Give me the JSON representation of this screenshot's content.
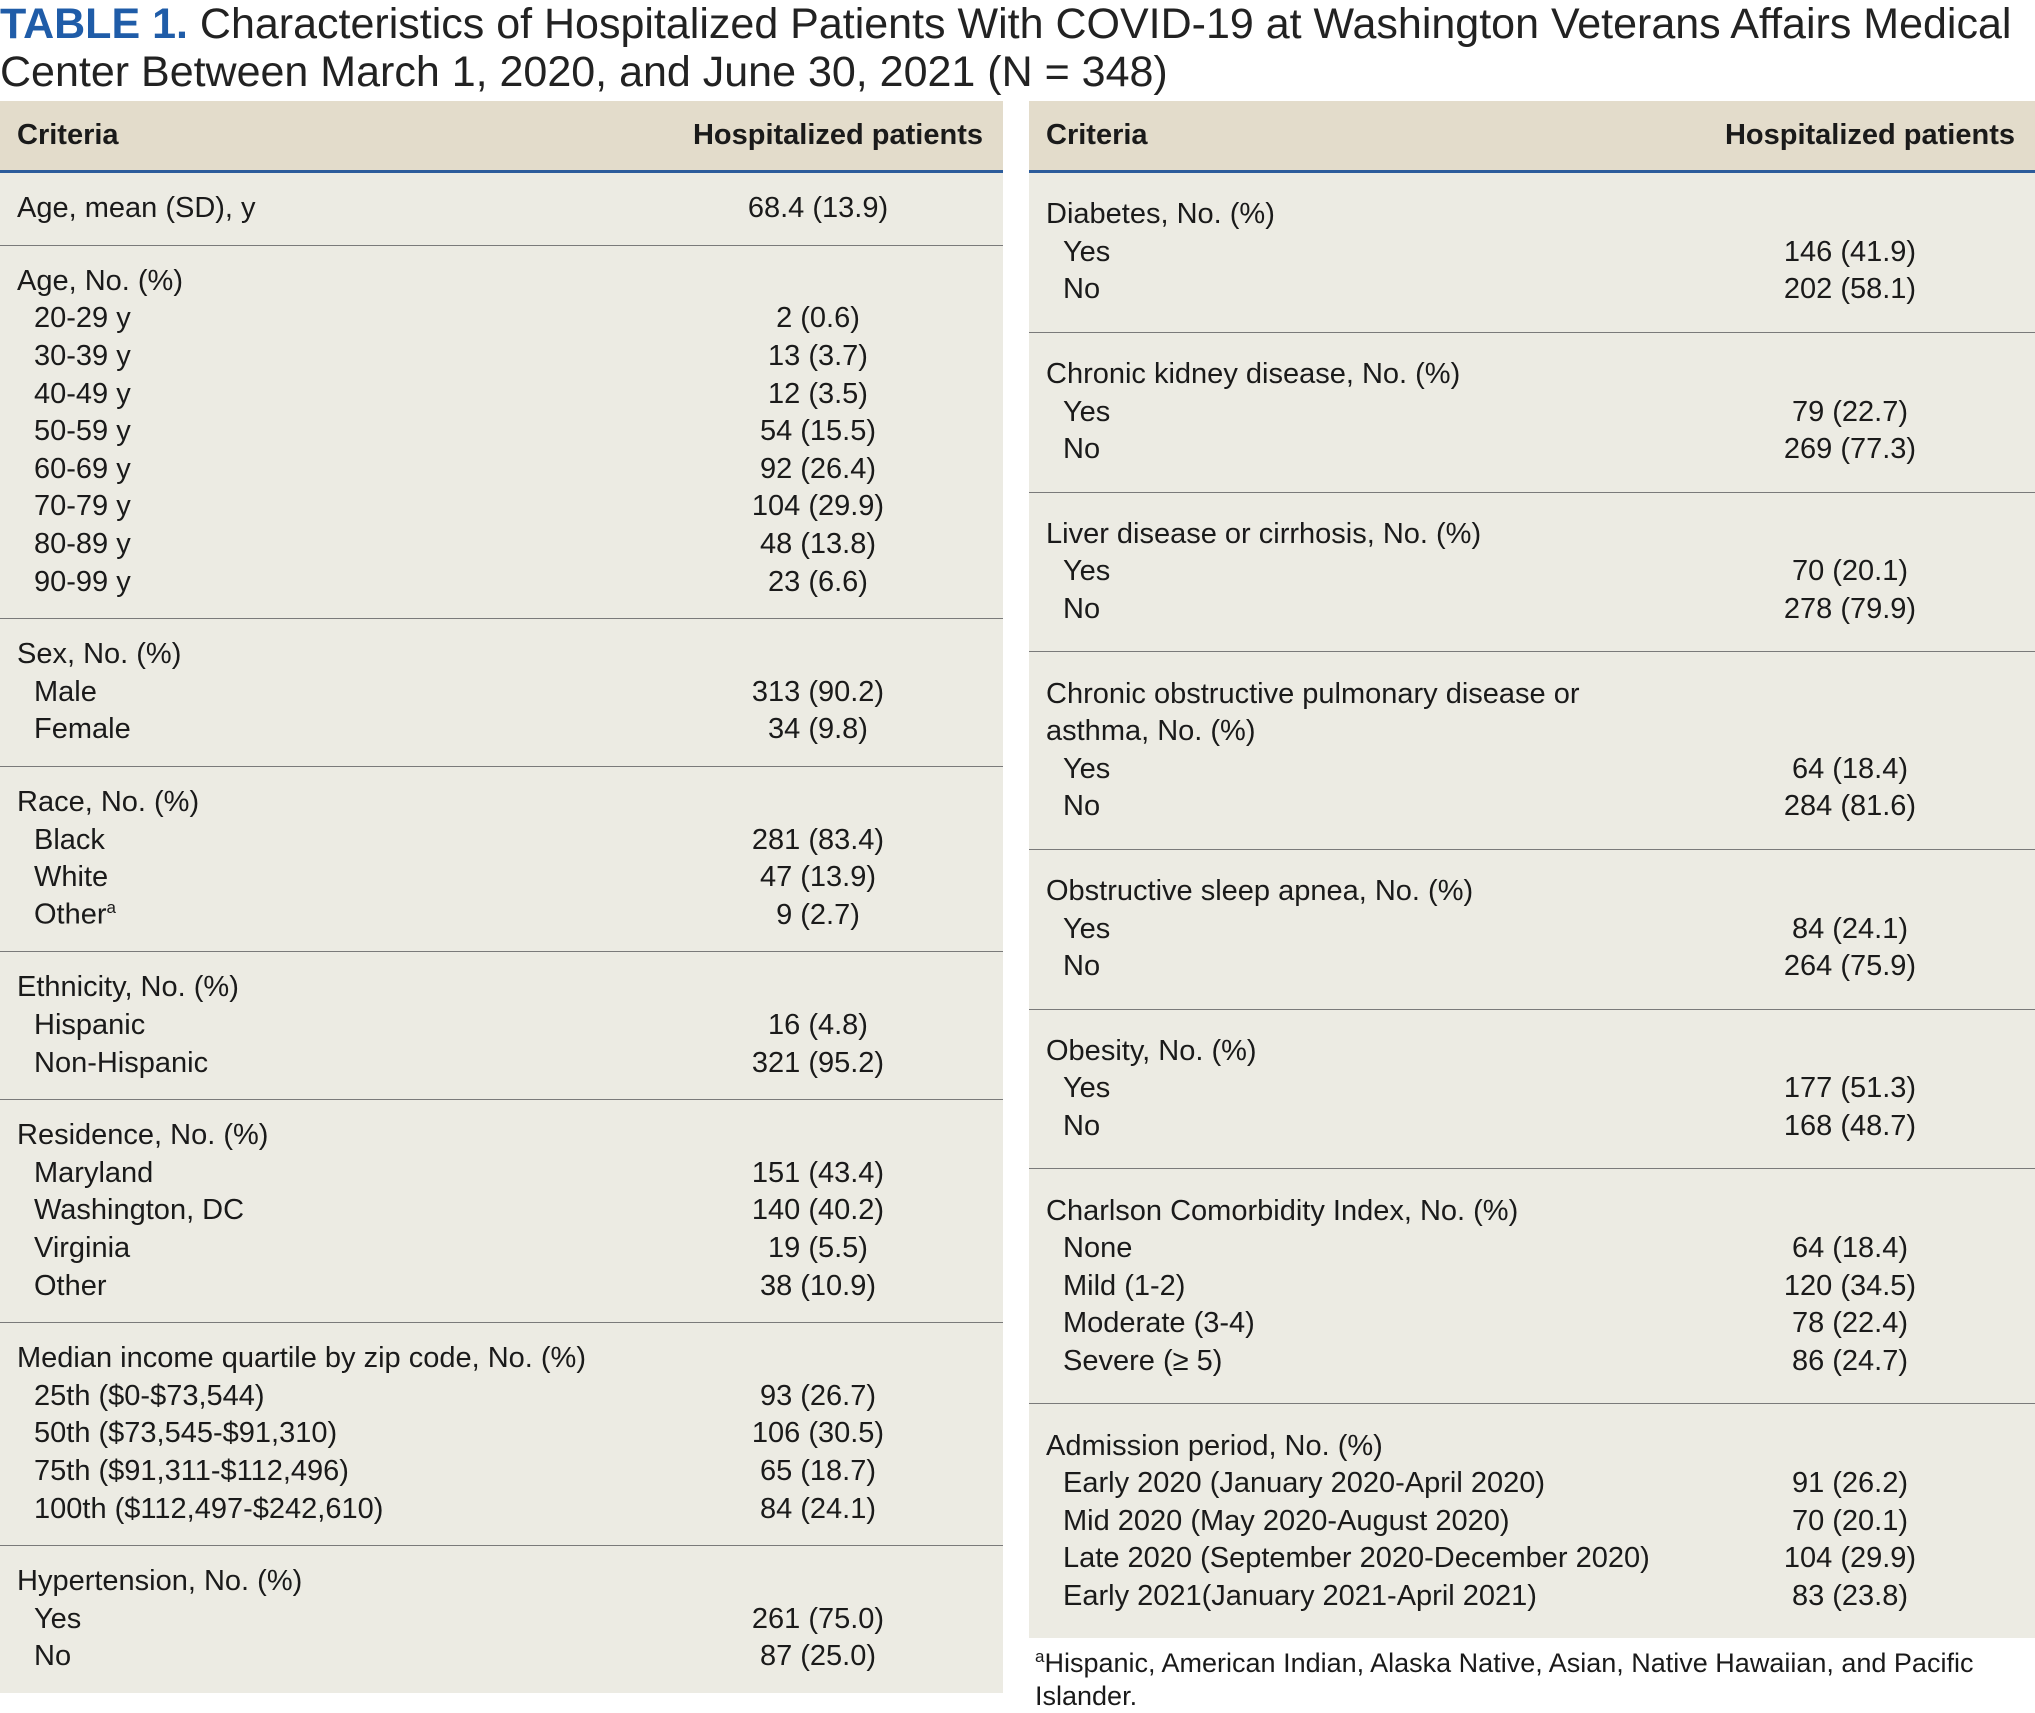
{
  "title": {
    "label": "TABLE 1.",
    "text": "Characteristics of Hospitalized Patients With COVID-19 at Washington Veterans Affairs Medical Center Between March 1, 2020, and June 30, 2021 (N = 348)"
  },
  "tables": [
    {
      "header": [
        "Criteria",
        "Hospitalized patients"
      ],
      "groups": [
        {
          "label": "Age, mean (SD), y",
          "value": "68.4 (13.9)"
        },
        {
          "label": "Age, No. (%)",
          "rows": [
            {
              "label": "20-29 y",
              "value": "2 (0.6)"
            },
            {
              "label": "30-39 y",
              "value": "13 (3.7)"
            },
            {
              "label": "40-49 y",
              "value": "12 (3.5)"
            },
            {
              "label": "50-59 y",
              "value": "54 (15.5)"
            },
            {
              "label": "60-69 y",
              "value": "92 (26.4)"
            },
            {
              "label": "70-79 y",
              "value": "104 (29.9)"
            },
            {
              "label": "80-89 y",
              "value": "48 (13.8)"
            },
            {
              "label": "90-99 y",
              "value": "23 (6.6)"
            }
          ]
        },
        {
          "label": "Sex, No. (%)",
          "rows": [
            {
              "label": "Male",
              "value": "313 (90.2)"
            },
            {
              "label": "Female",
              "value": "34 (9.8)"
            }
          ]
        },
        {
          "label": "Race, No. (%)",
          "rows": [
            {
              "label": "Black",
              "value": "281 (83.4)"
            },
            {
              "label": "White",
              "value": "47 (13.9)"
            },
            {
              "label": "Other",
              "note": "a",
              "value": "9 (2.7)"
            }
          ]
        },
        {
          "label": "Ethnicity, No. (%)",
          "rows": [
            {
              "label": "Hispanic",
              "value": "16 (4.8)"
            },
            {
              "label": "Non-Hispanic",
              "value": "321 (95.2)"
            }
          ]
        },
        {
          "label": "Residence, No. (%)",
          "rows": [
            {
              "label": "Maryland",
              "value": "151 (43.4)"
            },
            {
              "label": "Washington, DC",
              "value": "140 (40.2)"
            },
            {
              "label": "Virginia",
              "value": "19 (5.5)"
            },
            {
              "label": "Other",
              "value": "38 (10.9)"
            }
          ]
        },
        {
          "label": "Median income quartile by zip code, No. (%)",
          "rows": [
            {
              "label": "25th ($0-$73,544)",
              "value": "93 (26.7)"
            },
            {
              "label": "50th ($73,545-$91,310)",
              "value": "106 (30.5)"
            },
            {
              "label": "75th ($91,311-$112,496)",
              "value": "65 (18.7)"
            },
            {
              "label": "100th ($112,497-$242,610)",
              "value": "84 (24.1)"
            }
          ]
        },
        {
          "label": "Hypertension, No. (%)",
          "rows": [
            {
              "label": "Yes",
              "value": "261 (75.0)"
            },
            {
              "label": "No",
              "value": "87 (25.0)"
            }
          ]
        }
      ]
    },
    {
      "header": [
        "Criteria",
        "Hospitalized patients"
      ],
      "groups": [
        {
          "label": "Diabetes, No. (%)",
          "rows": [
            {
              "label": "Yes",
              "value": "146 (41.9)"
            },
            {
              "label": "No",
              "value": "202 (58.1)"
            }
          ]
        },
        {
          "label": "Chronic kidney disease, No. (%)",
          "rows": [
            {
              "label": "Yes",
              "value": "79 (22.7)"
            },
            {
              "label": "No",
              "value": "269 (77.3)"
            }
          ]
        },
        {
          "label": "Liver disease or cirrhosis, No. (%)",
          "rows": [
            {
              "label": "Yes",
              "value": "70 (20.1)"
            },
            {
              "label": "No",
              "value": "278 (79.9)"
            }
          ]
        },
        {
          "label": "Chronic obstructive pulmonary disease or",
          "label2": "asthma, No. (%)",
          "rows": [
            {
              "label": "Yes",
              "value": "64 (18.4)"
            },
            {
              "label": "No",
              "value": "284 (81.6)"
            }
          ]
        },
        {
          "label": "Obstructive sleep apnea, No. (%)",
          "rows": [
            {
              "label": "Yes",
              "value": "84 (24.1)"
            },
            {
              "label": "No",
              "value": "264 (75.9)"
            }
          ]
        },
        {
          "label": "Obesity, No. (%)",
          "rows": [
            {
              "label": "Yes",
              "value": "177 (51.3)"
            },
            {
              "label": "No",
              "value": "168 (48.7)"
            }
          ]
        },
        {
          "label": "Charlson Comorbidity Index, No. (%)",
          "rows": [
            {
              "label": "None",
              "value": "64 (18.4)"
            },
            {
              "label": "Mild (1-2)",
              "value": "120 (34.5)"
            },
            {
              "label": "Moderate (3-4)",
              "value": "78 (22.4)"
            },
            {
              "label": "Severe (≥ 5)",
              "value": "86 (24.7)"
            }
          ]
        },
        {
          "label": "Admission period, No. (%)",
          "rows": [
            {
              "label": "Early 2020 (January 2020-April 2020)",
              "value": "91 (26.2)"
            },
            {
              "label": "Mid 2020 (May 2020-August 2020)",
              "value": "70 (20.1)"
            },
            {
              "label": "Late 2020 (September 2020-December 2020)",
              "value": "104 (29.9)"
            },
            {
              "label": "Early 2021(January 2021-April 2021)",
              "value": "83 (23.8)"
            }
          ]
        }
      ]
    }
  ],
  "footnote": {
    "marker": "a",
    "text": "Hispanic, American Indian, Alaska Native, Asian, Native Hawaiian, and Pacific Islander."
  }
}
